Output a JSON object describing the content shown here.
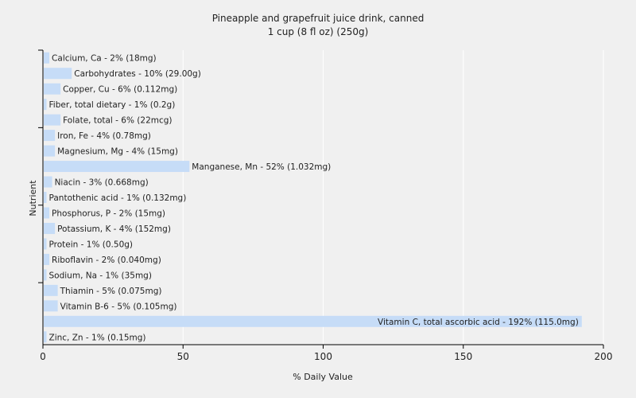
{
  "chart_data": {
    "type": "bar",
    "orientation": "horizontal",
    "title": "Pineapple and grapefruit juice drink, canned",
    "subtitle": "1 cup (8 fl oz) (250g)",
    "xlabel": "% Daily Value",
    "ylabel": "Nutrient",
    "xlim": [
      0,
      200
    ],
    "xticks": [
      0,
      50,
      100,
      150,
      200
    ],
    "grid": true,
    "bar_color": "#c6dcf7",
    "grid_color": "#ffffff",
    "background": "#f0f0f0",
    "categories": [
      "Calcium, Ca",
      "Carbohydrates",
      "Copper, Cu",
      "Fiber, total dietary",
      "Folate, total",
      "Iron, Fe",
      "Magnesium, Mg",
      "Manganese, Mn",
      "Niacin",
      "Pantothenic acid",
      "Phosphorus, P",
      "Potassium, K",
      "Protein",
      "Riboflavin",
      "Sodium, Na",
      "Thiamin",
      "Vitamin B-6",
      "Vitamin C, total ascorbic acid",
      "Zinc, Zn"
    ],
    "values": [
      2,
      10,
      6,
      1,
      6,
      4,
      4,
      52,
      3,
      1,
      2,
      4,
      1,
      2,
      1,
      5,
      5,
      192,
      1
    ],
    "labels": [
      "Calcium, Ca - 2% (18mg)",
      "Carbohydrates - 10% (29.00g)",
      "Copper, Cu - 6% (0.112mg)",
      "Fiber, total dietary - 1% (0.2g)",
      "Folate, total - 6% (22mcg)",
      "Iron, Fe - 4% (0.78mg)",
      "Magnesium, Mg - 4% (15mg)",
      "Manganese, Mn - 52% (1.032mg)",
      "Niacin - 3% (0.668mg)",
      "Pantothenic acid - 1% (0.132mg)",
      "Phosphorus, P - 2% (15mg)",
      "Potassium, K - 4% (152mg)",
      "Protein - 1% (0.50g)",
      "Riboflavin - 2% (0.040mg)",
      "Sodium, Na - 1% (35mg)",
      "Thiamin - 5% (0.075mg)",
      "Vitamin B-6 - 5% (0.105mg)",
      "Vitamin C, total ascorbic acid - 192% (115.0mg)",
      "Zinc, Zn - 1% (0.15mg)"
    ]
  }
}
